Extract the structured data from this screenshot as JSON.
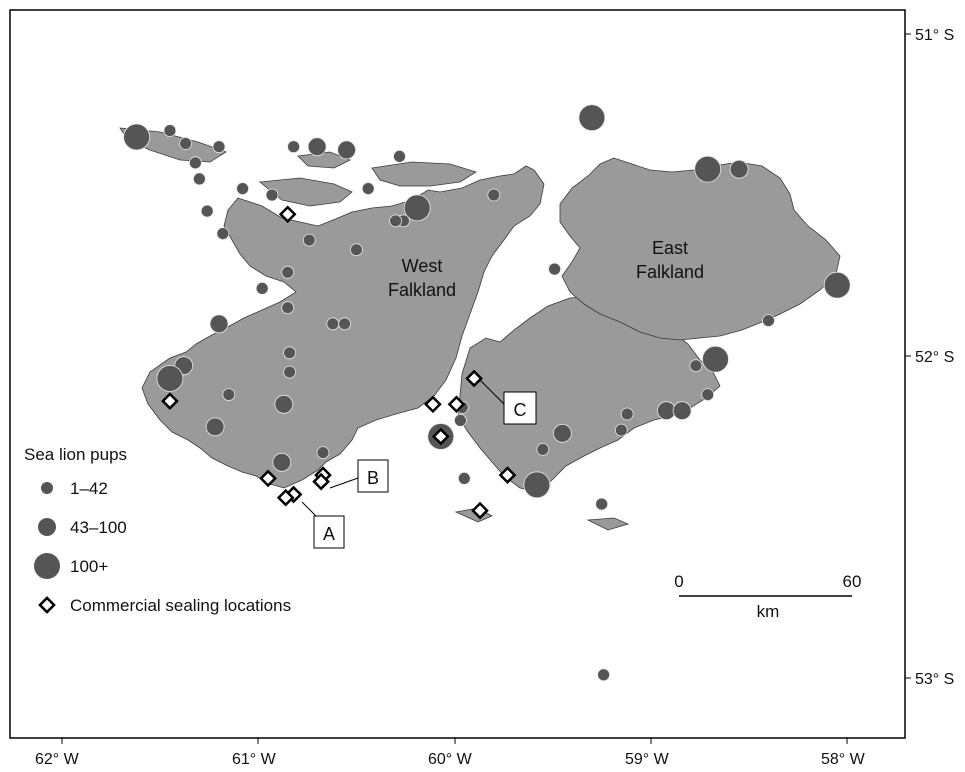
{
  "map": {
    "region_labels": {
      "west": [
        "West",
        "Falkland"
      ],
      "east": [
        "East",
        "Falkland"
      ]
    },
    "axes": {
      "longitude_ticks": [
        "62° W",
        "61° W",
        "60° W",
        "59° W",
        "58° W"
      ],
      "latitude_ticks": [
        "51° S",
        "52° S",
        "53° S"
      ]
    },
    "site_labels": [
      "A",
      "B",
      "C"
    ],
    "scale_bar": {
      "start": "0",
      "end": "60",
      "unit": "km"
    },
    "colors": {
      "land": "#9a9a9a",
      "circle": "#555555",
      "coast": "#3a3a3a",
      "diamond_stroke": "#000000"
    }
  },
  "legend": {
    "title": "Sea lion pups",
    "items": [
      {
        "label": "1–42",
        "size": "small"
      },
      {
        "label": "43–100",
        "size": "medium"
      },
      {
        "label": "100+",
        "size": "large"
      }
    ],
    "diamond_label": "Commercial sealing locations"
  },
  "colonies": [
    {
      "lon": -61.62,
      "lat": 51.32,
      "size": "large"
    },
    {
      "lon": -61.45,
      "lat": 51.3,
      "size": "small"
    },
    {
      "lon": -61.37,
      "lat": 51.34,
      "size": "small"
    },
    {
      "lon": -61.32,
      "lat": 51.4,
      "size": "small"
    },
    {
      "lon": -61.3,
      "lat": 51.45,
      "size": "small"
    },
    {
      "lon": -61.2,
      "lat": 51.35,
      "size": "small"
    },
    {
      "lon": -61.08,
      "lat": 51.48,
      "size": "small"
    },
    {
      "lon": -61.26,
      "lat": 51.55,
      "size": "small"
    },
    {
      "lon": -61.18,
      "lat": 51.62,
      "size": "small"
    },
    {
      "lon": -60.93,
      "lat": 51.5,
      "size": "small"
    },
    {
      "lon": -60.82,
      "lat": 51.35,
      "size": "small"
    },
    {
      "lon": -60.7,
      "lat": 51.35,
      "size": "medium"
    },
    {
      "lon": -60.55,
      "lat": 51.36,
      "size": "medium"
    },
    {
      "lon": -60.44,
      "lat": 51.48,
      "size": "small"
    },
    {
      "lon": -60.28,
      "lat": 51.38,
      "size": "small"
    },
    {
      "lon": -60.19,
      "lat": 51.54,
      "size": "large"
    },
    {
      "lon": -60.26,
      "lat": 51.58,
      "size": "small"
    },
    {
      "lon": -60.3,
      "lat": 51.58,
      "size": "small"
    },
    {
      "lon": -60.74,
      "lat": 51.64,
      "size": "small"
    },
    {
      "lon": -60.5,
      "lat": 51.67,
      "size": "small"
    },
    {
      "lon": -59.8,
      "lat": 51.5,
      "size": "small"
    },
    {
      "lon": -60.85,
      "lat": 51.74,
      "size": "small"
    },
    {
      "lon": -60.98,
      "lat": 51.79,
      "size": "small"
    },
    {
      "lon": -61.2,
      "lat": 51.9,
      "size": "medium"
    },
    {
      "lon": -60.85,
      "lat": 51.85,
      "size": "small"
    },
    {
      "lon": -60.62,
      "lat": 51.9,
      "size": "small"
    },
    {
      "lon": -60.56,
      "lat": 51.9,
      "size": "small"
    },
    {
      "lon": -60.84,
      "lat": 51.99,
      "size": "small"
    },
    {
      "lon": -60.84,
      "lat": 52.05,
      "size": "small"
    },
    {
      "lon": -61.38,
      "lat": 52.03,
      "size": "medium"
    },
    {
      "lon": -61.45,
      "lat": 52.07,
      "size": "large"
    },
    {
      "lon": -61.15,
      "lat": 52.12,
      "size": "small"
    },
    {
      "lon": -60.87,
      "lat": 52.15,
      "size": "medium"
    },
    {
      "lon": -61.22,
      "lat": 52.22,
      "size": "medium"
    },
    {
      "lon": -60.88,
      "lat": 52.33,
      "size": "medium"
    },
    {
      "lon": -60.67,
      "lat": 52.3,
      "size": "small"
    },
    {
      "lon": -59.96,
      "lat": 52.16,
      "size": "small"
    },
    {
      "lon": -59.97,
      "lat": 52.2,
      "size": "small"
    },
    {
      "lon": -60.07,
      "lat": 52.25,
      "size": "large"
    },
    {
      "lon": -59.95,
      "lat": 52.38,
      "size": "small"
    },
    {
      "lon": -59.58,
      "lat": 52.4,
      "size": "large"
    },
    {
      "lon": -59.55,
      "lat": 52.29,
      "size": "small"
    },
    {
      "lon": -59.45,
      "lat": 52.24,
      "size": "medium"
    },
    {
      "lon": -59.25,
      "lat": 52.46,
      "size": "small"
    },
    {
      "lon": -59.15,
      "lat": 52.23,
      "size": "small"
    },
    {
      "lon": -59.12,
      "lat": 52.18,
      "size": "small"
    },
    {
      "lon": -58.92,
      "lat": 52.17,
      "size": "medium"
    },
    {
      "lon": -58.84,
      "lat": 52.17,
      "size": "medium"
    },
    {
      "lon": -58.71,
      "lat": 52.12,
      "size": "small"
    },
    {
      "lon": -58.77,
      "lat": 52.03,
      "size": "small"
    },
    {
      "lon": -58.67,
      "lat": 52.01,
      "size": "large"
    },
    {
      "lon": -58.4,
      "lat": 51.89,
      "size": "small"
    },
    {
      "lon": -58.05,
      "lat": 51.78,
      "size": "large"
    },
    {
      "lon": -58.71,
      "lat": 51.42,
      "size": "large"
    },
    {
      "lon": -58.55,
      "lat": 51.42,
      "size": "medium"
    },
    {
      "lon": -59.3,
      "lat": 51.26,
      "size": "large"
    },
    {
      "lon": -59.49,
      "lat": 51.73,
      "size": "small"
    },
    {
      "lon": -59.24,
      "lat": 52.99,
      "size": "small"
    }
  ],
  "sealing_locations": [
    {
      "lon": -60.85,
      "lat": 51.56
    },
    {
      "lon": -61.45,
      "lat": 52.14
    },
    {
      "lon": -60.95,
      "lat": 52.38
    },
    {
      "lon": -60.82,
      "lat": 52.43
    },
    {
      "lon": -60.86,
      "lat": 52.44
    },
    {
      "lon": -60.67,
      "lat": 52.37
    },
    {
      "lon": -60.68,
      "lat": 52.39
    },
    {
      "lon": -60.11,
      "lat": 52.15
    },
    {
      "lon": -59.99,
      "lat": 52.15
    },
    {
      "lon": -60.07,
      "lat": 52.25
    },
    {
      "lon": -59.9,
      "lat": 52.07
    },
    {
      "lon": -59.73,
      "lat": 52.37
    },
    {
      "lon": -59.87,
      "lat": 52.48
    }
  ]
}
